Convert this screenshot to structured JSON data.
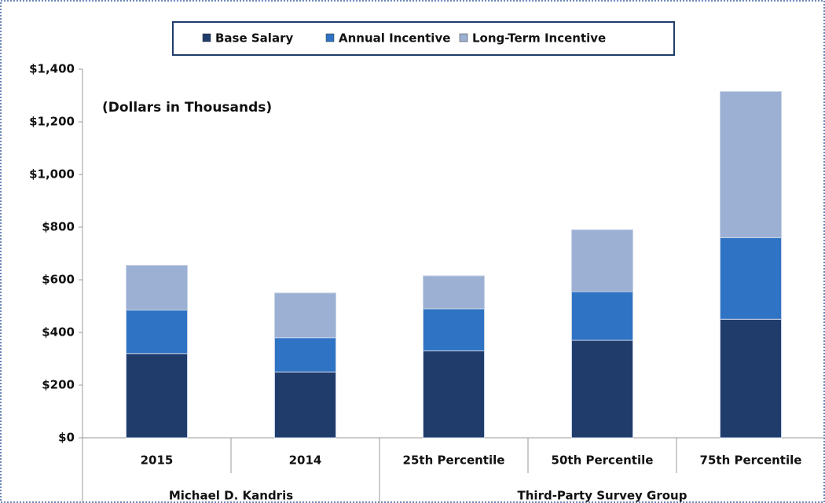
{
  "chart_data": {
    "type": "stacked_bar",
    "legend": "top",
    "annotation": "(Dollars in Thousands)",
    "categories": [
      "2015",
      "2014",
      "25th Percentile",
      "50th Percentile",
      "75th Percentile"
    ],
    "groups": [
      {
        "name": "Michael D. Kandris",
        "size": 2
      },
      {
        "name": "Third-Party Survey Group",
        "size": 3
      }
    ],
    "series": [
      {
        "name": "Base Salary",
        "color": "#1f3c6b",
        "values": [
          320,
          250,
          330,
          370,
          450
        ]
      },
      {
        "name": "Annual Incentive",
        "color": "#2f73c4",
        "values": [
          165,
          130,
          160,
          185,
          310
        ]
      },
      {
        "name": "Long-Term Incentive",
        "color": "#9cb0d3",
        "values": [
          170,
          170,
          125,
          235,
          555
        ]
      }
    ],
    "ylim": [
      0,
      1400
    ],
    "yticks": [
      {
        "value": 0,
        "label": "$0"
      },
      {
        "value": 200,
        "label": "$200"
      },
      {
        "value": 400,
        "label": "$400"
      },
      {
        "value": 600,
        "label": "$600"
      },
      {
        "value": 800,
        "label": "$800"
      },
      {
        "value": 1000,
        "label": "$1,000"
      },
      {
        "value": 1200,
        "label": "$1,200"
      },
      {
        "value": 1400,
        "label": "$1,400"
      }
    ]
  }
}
